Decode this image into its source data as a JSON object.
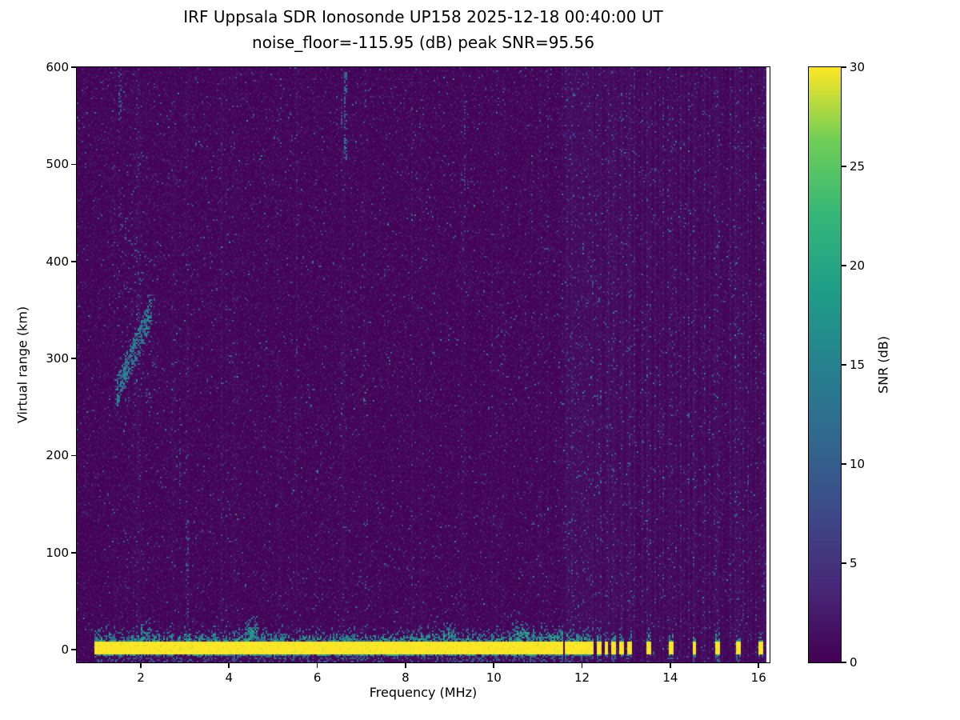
{
  "page": {
    "background": "#ffffff"
  },
  "chart_data": {
    "type": "heatmap",
    "title": "IRF Uppsala SDR Ionosonde UP158 2025-12-18 00:40:00  UT",
    "subtitle": "noise_floor=-115.95 (dB) peak SNR=95.56",
    "xlabel": "Frequency (MHz)",
    "ylabel": "Virtual range (km)",
    "noise_floor_db": -115.95,
    "peak_snr_db": 95.56,
    "xlim": [
      0.55,
      16.25
    ],
    "ylim": [
      -13,
      600
    ],
    "x_ticks": [
      2,
      4,
      6,
      8,
      10,
      12,
      14,
      16
    ],
    "y_ticks": [
      0,
      100,
      200,
      300,
      400,
      500,
      600
    ],
    "grid": false,
    "colorbar": {
      "label": "SNR (dB)",
      "ticks": [
        0,
        5,
        10,
        15,
        20,
        25,
        30
      ],
      "vmin": 0,
      "vmax": 30,
      "colormap": "viridis",
      "position": "right"
    },
    "colormap_stops": [
      {
        "t": 0.0,
        "c": "#440154"
      },
      {
        "t": 0.125,
        "c": "#482878"
      },
      {
        "t": 0.25,
        "c": "#3e4a89"
      },
      {
        "t": 0.375,
        "c": "#31688e"
      },
      {
        "t": 0.5,
        "c": "#26828e"
      },
      {
        "t": 0.625,
        "c": "#1f9e89"
      },
      {
        "t": 0.75,
        "c": "#35b779"
      },
      {
        "t": 0.875,
        "c": "#6ece58"
      },
      {
        "t": 1.0,
        "c": "#fde725"
      }
    ],
    "data_extent": {
      "f_min": 0.95,
      "f_max": 16.17
    },
    "noise": {
      "seed": 1218,
      "mean_db": 0.7,
      "speckle_prob": 0.013,
      "bright_prob": 0.0015,
      "random_column_prob": 0.09,
      "comb": {
        "start_mhz": 11.55,
        "spacing_mhz": 0.095,
        "duty": 0.35
      }
    },
    "features": {
      "ground_band": {
        "f_start": 0.95,
        "f_end": 11.58,
        "bottom_km": -6,
        "top_km": 9,
        "snr_db": 30
      },
      "band_bumps": [
        {
          "f": 2.1,
          "w": 0.1,
          "top_km": 18
        },
        {
          "f": 4.5,
          "w": 0.14,
          "top_km": 22
        },
        {
          "f": 9.0,
          "w": 0.15,
          "top_km": 16
        },
        {
          "f": 10.6,
          "w": 0.2,
          "top_km": 17
        },
        {
          "f": 11.35,
          "w": 0.25,
          "top_km": 15
        }
      ],
      "pulses": [
        11.65,
        11.76,
        11.87,
        11.98,
        12.1,
        12.22,
        12.38,
        12.55,
        12.72,
        12.9,
        13.08,
        13.52,
        14.03,
        14.55,
        15.08,
        15.55,
        16.05
      ],
      "echo_arc": {
        "f0": 1.45,
        "f1": 2.25,
        "km0": 265,
        "km1": 350,
        "spread_km": 30,
        "n": 420,
        "snr_min": 6,
        "snr_max": 18
      },
      "echo_cloud": {
        "f0": 1.5,
        "f1": 2.4,
        "km0": 240,
        "km1": 420,
        "n": 130,
        "snr_min": 5,
        "snr_max": 12
      },
      "echo_high_dots": {
        "f0": 1.5,
        "f1": 1.85,
        "km0": 420,
        "km1": 475,
        "n": 25,
        "snr_min": 5,
        "snr_max": 10
      },
      "stripes": [
        {
          "f": 1.95,
          "b": 2.5
        },
        {
          "f": 2.75,
          "b": 2.0
        },
        {
          "f": 3.05,
          "b": 2.5
        },
        {
          "f": 4.1,
          "b": 1.8
        },
        {
          "f": 5.15,
          "b": 1.8
        },
        {
          "f": 6.6,
          "b": 2.2
        },
        {
          "f": 7.1,
          "b": 1.8
        },
        {
          "f": 8.35,
          "b": 1.8
        },
        {
          "f": 9.3,
          "b": 2.2
        },
        {
          "f": 10.2,
          "b": 1.8
        },
        {
          "f": 11.05,
          "b": 2.0
        }
      ],
      "streaks": [
        {
          "f": 6.62,
          "km0": 505,
          "km1": 595,
          "prob": 0.55,
          "s0": 7,
          "s1": 16,
          "w": 2
        },
        {
          "f": 6.55,
          "km0": 520,
          "km1": 580,
          "prob": 0.3,
          "s0": 6,
          "s1": 12,
          "w": 1
        },
        {
          "f": 9.35,
          "km0": 470,
          "km1": 560,
          "prob": 0.25,
          "s0": 5,
          "s1": 10,
          "w": 1
        },
        {
          "f": 3.05,
          "km0": 30,
          "km1": 140,
          "prob": 0.3,
          "s0": 5,
          "s1": 11,
          "w": 2
        },
        {
          "f": 2.9,
          "km0": 150,
          "km1": 260,
          "prob": 0.2,
          "s0": 5,
          "s1": 9,
          "w": 1
        },
        {
          "f": 1.65,
          "km0": 230,
          "km1": 300,
          "prob": 0.25,
          "s0": 5,
          "s1": 10,
          "w": 1
        },
        {
          "f": 1.5,
          "km0": 545,
          "km1": 595,
          "prob": 0.3,
          "s0": 6,
          "s1": 12,
          "w": 2
        },
        {
          "f": 2.3,
          "km0": 555,
          "km1": 585,
          "prob": 0.25,
          "s0": 5,
          "s1": 10,
          "w": 1
        }
      ]
    }
  }
}
